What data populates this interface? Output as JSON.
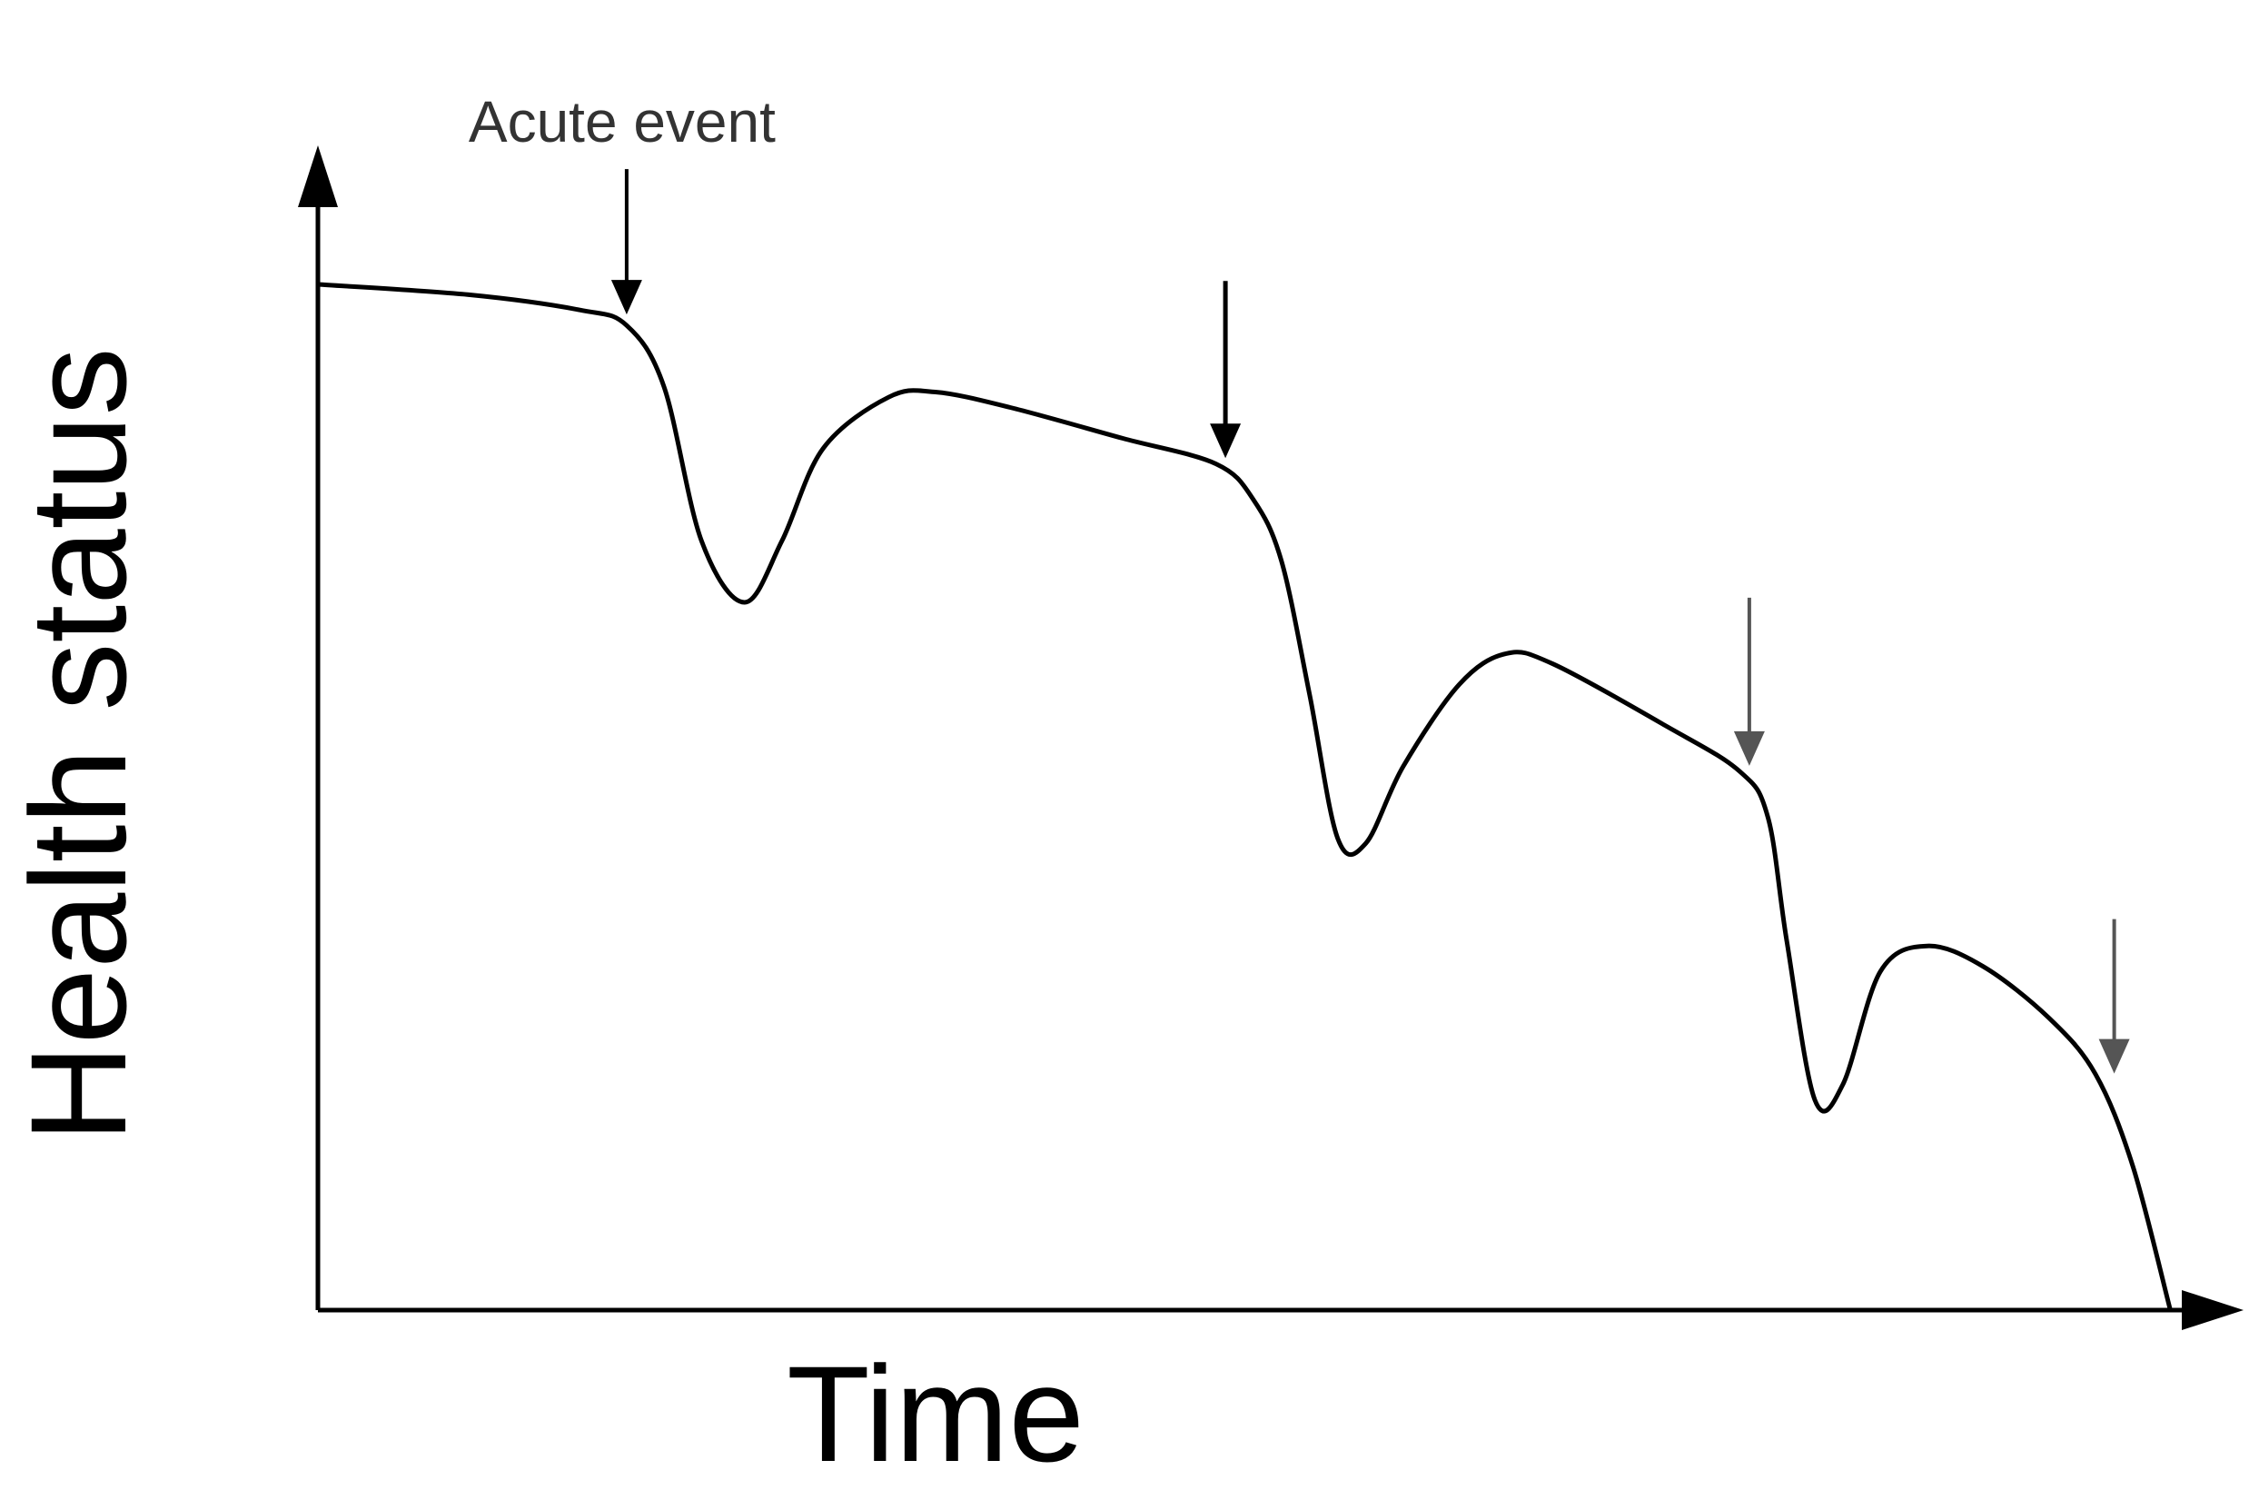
{
  "chart_data": {
    "type": "line",
    "title": "",
    "xlabel": "Time",
    "ylabel": "Health status",
    "xlim": [
      0,
      100
    ],
    "ylim": [
      0,
      100
    ],
    "grid": false,
    "legend": "none",
    "series": [
      {
        "values_xy": [
          [
            0,
            100
          ],
          [
            8,
            99
          ],
          [
            14,
            97.5
          ],
          [
            16.5,
            96
          ],
          [
            18.5,
            90
          ],
          [
            20.5,
            75
          ],
          [
            22.8,
            69
          ],
          [
            24.8,
            75
          ],
          [
            27,
            84
          ],
          [
            30.5,
            89
          ],
          [
            33,
            89.5
          ],
          [
            37,
            88
          ],
          [
            43,
            85
          ],
          [
            48,
            82.5
          ],
          [
            50,
            79
          ],
          [
            51.5,
            73
          ],
          [
            53,
            60
          ],
          [
            54.5,
            46
          ],
          [
            56,
            45.5
          ],
          [
            58,
            53
          ],
          [
            61,
            61
          ],
          [
            63.5,
            64
          ],
          [
            66,
            63
          ],
          [
            72,
            57
          ],
          [
            76,
            52.5
          ],
          [
            77.5,
            48
          ],
          [
            78.5,
            36
          ],
          [
            80,
            20.5
          ],
          [
            81.5,
            22
          ],
          [
            83.5,
            33
          ],
          [
            86,
            35.5
          ],
          [
            89,
            33.5
          ],
          [
            92.5,
            28.5
          ],
          [
            95,
            23
          ],
          [
            97,
            14
          ],
          [
            99,
            0
          ]
        ],
        "color": "#000000"
      }
    ],
    "annotations": [
      {
        "text": "Acute event",
        "x": 16.5,
        "y": 96
      },
      {
        "text": "",
        "x": 48.5,
        "y": 82
      },
      {
        "text": "",
        "x": 76.5,
        "y": 52
      },
      {
        "text": "",
        "x": 96,
        "y": 22
      }
    ],
    "colors": {
      "axis": "#000000",
      "line": "#000000",
      "arrow_dark": "#000000",
      "arrow_light": "#555555"
    }
  }
}
